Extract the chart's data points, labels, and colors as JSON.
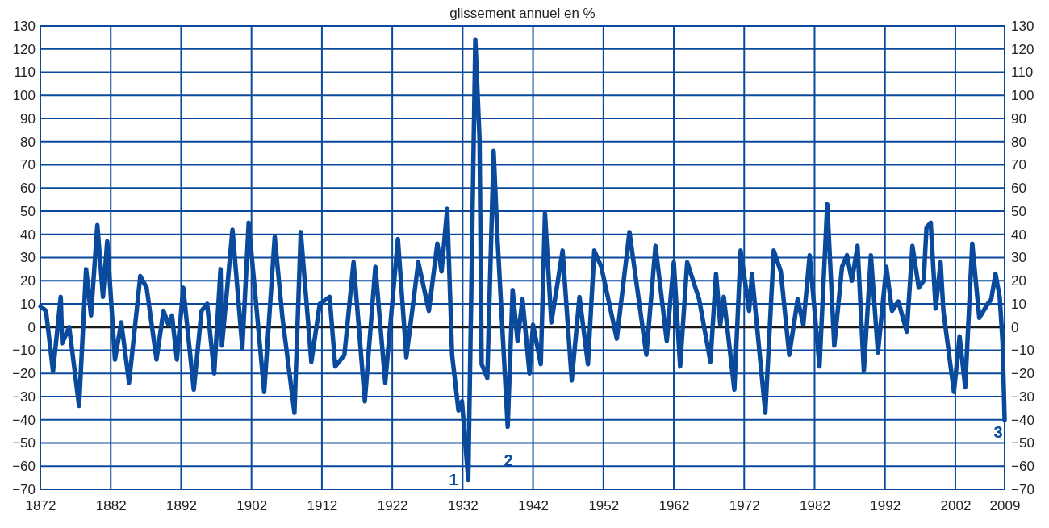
{
  "chart_data": {
    "type": "line",
    "title": "glissement annuel en %",
    "x": [
      1872.0,
      1872.8,
      1873.8,
      1874.9,
      1875.1,
      1876.1,
      1877.5,
      1878.5,
      1879.2,
      1880.1,
      1880.9,
      1881.5,
      1882.6,
      1883.5,
      1884.6,
      1886.2,
      1887.1,
      1888.5,
      1889.5,
      1890.2,
      1890.7,
      1891.4,
      1892.3,
      1893.8,
      1894.9,
      1895.7,
      1896.7,
      1897.6,
      1897.8,
      1899.3,
      1900.7,
      1901.6,
      1903.8,
      1905.3,
      1906.4,
      1908.1,
      1909.0,
      1910.5,
      1911.7,
      1913.1,
      1913.9,
      1915.2,
      1916.5,
      1918.1,
      1919.6,
      1921.0,
      1922.8,
      1924.0,
      1925.7,
      1927.2,
      1928.4,
      1929.0,
      1929.8,
      1930.5,
      1931.4,
      1931.9,
      1932.8,
      1933.8,
      1934.4,
      1934.7,
      1935.5,
      1936.4,
      1936.9,
      1938.4,
      1939.1,
      1939.8,
      1940.5,
      1941.5,
      1942.0,
      1943.1,
      1943.7,
      1944.6,
      1946.2,
      1947.5,
      1948.6,
      1949.8,
      1950.7,
      1951.7,
      1953.9,
      1955.7,
      1958.1,
      1959.4,
      1961.0,
      1962.0,
      1962.9,
      1963.9,
      1965.6,
      1967.2,
      1968.0,
      1968.6,
      1969.1,
      1970.6,
      1971.5,
      1972.7,
      1973.1,
      1975.0,
      1976.2,
      1977.2,
      1978.4,
      1979.6,
      1980.4,
      1981.3,
      1982.7,
      1983.8,
      1984.8,
      1985.9,
      1986.6,
      1987.3,
      1988.1,
      1989.0,
      1990.0,
      1991.0,
      1992.2,
      1993.0,
      1993.9,
      1995.1,
      1995.9,
      1996.8,
      1997.5,
      1997.9,
      1998.5,
      1999.2,
      1999.9,
      2000.3,
      2001.8,
      2002.6,
      2003.4,
      2004.4,
      2005.4,
      2006.6,
      2007.1,
      2007.7,
      2008.3,
      2008.7,
      2009.0
    ],
    "series": [
      {
        "color": "#0a4a9c",
        "values": [
          9,
          7,
          -19,
          13,
          -7,
          0,
          -34,
          25,
          5,
          44,
          13,
          37,
          -14,
          2,
          -24,
          22,
          17,
          -14,
          7,
          1,
          5,
          -14,
          17,
          -27,
          7,
          10,
          -20,
          25,
          -8,
          42,
          -9,
          45,
          -28,
          39,
          4,
          -37,
          41,
          -15,
          10,
          13,
          -17,
          -12,
          28,
          -32,
          26,
          -24,
          38,
          -13,
          28,
          7,
          36,
          24,
          51,
          -12,
          -36,
          -32,
          -66,
          124,
          81,
          -16,
          -22,
          76,
          41,
          -43,
          16,
          -6,
          12,
          -20,
          1,
          -16,
          49,
          2,
          33,
          -23,
          13,
          -16,
          33,
          26,
          -5,
          41,
          -12,
          35,
          -6,
          28,
          -17,
          28,
          12,
          -15,
          23,
          1,
          13,
          -27,
          33,
          7,
          23,
          -37,
          33,
          24,
          -12,
          12,
          1,
          31,
          -17,
          53,
          -8,
          26,
          31,
          20,
          35,
          -19,
          31,
          -11,
          26,
          7,
          11,
          -2,
          35,
          17,
          20,
          43,
          45,
          8,
          28,
          7,
          -28,
          -4,
          -26,
          36,
          4,
          10,
          12,
          23,
          13,
          -6,
          -40
        ]
      }
    ],
    "xlim": [
      1872,
      2009
    ],
    "xticks": [
      1872,
      1882,
      1892,
      1902,
      1912,
      1922,
      1932,
      1942,
      1952,
      1962,
      1972,
      1982,
      1992,
      2002,
      2009
    ],
    "ylim": [
      -70,
      130
    ],
    "yticks": [
      -70,
      -60,
      -50,
      -40,
      -30,
      -20,
      -10,
      0,
      10,
      20,
      30,
      40,
      50,
      60,
      70,
      80,
      90,
      100,
      110,
      120,
      130
    ],
    "y2lim": [
      -70,
      130
    ],
    "y2ticks": [
      -70,
      -60,
      -50,
      -40,
      -30,
      -20,
      -10,
      0,
      10,
      20,
      30,
      40,
      50,
      60,
      70,
      80,
      90,
      100,
      110,
      120,
      130
    ],
    "grid": true,
    "marker": "none",
    "line_style": "solid",
    "ref_lines": [
      {
        "axis": "y",
        "value": 0,
        "color": "#1a1a1a"
      }
    ],
    "annotations": [
      "1",
      "2",
      "3"
    ]
  }
}
